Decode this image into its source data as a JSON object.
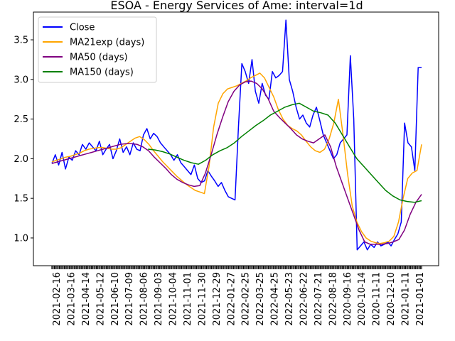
{
  "chart_data": {
    "type": "line",
    "title": "ESOA - Energy Services of Ame: interval=1d",
    "xlabel": "",
    "ylabel": "",
    "ylim": [
      0.65,
      3.85
    ],
    "yticks": [
      1.0,
      1.5,
      2.0,
      2.5,
      3.0,
      3.5
    ],
    "ytick_labels": [
      "1.0",
      "1.5",
      "2.0",
      "2.5",
      "3.0",
      "3.5"
    ],
    "x_tick_labels": [
      "2021-02-16",
      "2021-03-16",
      "2021-04-14",
      "2021-05-12",
      "2021-06-10",
      "2021-07-09",
      "2021-08-06",
      "2021-09-03",
      "2021-10-04",
      "2021-11-01",
      "2021-11-30",
      "2021-12-29",
      "2022-01-27",
      "2022-02-25",
      "2022-03-25",
      "2022-04-25",
      "2022-05-23",
      "2022-06-22",
      "2022-07-21",
      "2022-08-18",
      "2020-09-16",
      "2020-10-14",
      "2020-11-11",
      "2020-12-10",
      "2021-01-11",
      "2021-01-01"
    ],
    "legend_position": "upper-left",
    "series": [
      {
        "name": "Close",
        "color": "#0000ff",
        "values": [
          1.94,
          2.05,
          1.92,
          2.08,
          1.87,
          2.02,
          1.98,
          2.1,
          2.05,
          2.18,
          2.12,
          2.2,
          2.15,
          2.1,
          2.22,
          2.05,
          2.12,
          2.18,
          2.0,
          2.1,
          2.25,
          2.08,
          2.15,
          2.05,
          2.2,
          2.12,
          2.1,
          2.3,
          2.38,
          2.25,
          2.32,
          2.28,
          2.2,
          2.15,
          2.1,
          2.05,
          1.98,
          2.05,
          1.95,
          1.9,
          1.85,
          1.8,
          1.92,
          1.75,
          1.7,
          1.72,
          1.85,
          1.78,
          1.72,
          1.65,
          1.7,
          1.6,
          1.52,
          1.5,
          1.48,
          2.4,
          3.2,
          3.1,
          2.95,
          3.25,
          2.85,
          2.7,
          2.95,
          2.8,
          2.75,
          3.1,
          3.02,
          3.05,
          3.1,
          3.75,
          3.0,
          2.85,
          2.65,
          2.5,
          2.55,
          2.45,
          2.4,
          2.55,
          2.65,
          2.48,
          2.3,
          2.2,
          2.1,
          2.0,
          2.05,
          2.2,
          2.25,
          2.3,
          3.3,
          2.5,
          0.85,
          0.9,
          0.95,
          0.85,
          0.92,
          0.88,
          0.95,
          0.9,
          0.92,
          0.95,
          0.9,
          0.98,
          1.05,
          1.2,
          2.45,
          2.2,
          2.15,
          1.85,
          3.15,
          3.15
        ]
      },
      {
        "name": "MA21exp (days)",
        "color": "#ffa500",
        "values": [
          1.96,
          1.98,
          2.0,
          2.02,
          2.03,
          2.05,
          2.07,
          2.1,
          2.12,
          2.13,
          2.14,
          2.14,
          2.13,
          2.12,
          2.12,
          2.14,
          2.18,
          2.22,
          2.26,
          2.28,
          2.24,
          2.18,
          2.1,
          2.03,
          1.96,
          1.9,
          1.84,
          1.78,
          1.73,
          1.68,
          1.64,
          1.6,
          1.58,
          1.56,
          1.9,
          2.4,
          2.7,
          2.82,
          2.88,
          2.9,
          2.92,
          2.95,
          2.98,
          3.02,
          3.05,
          3.08,
          3.02,
          2.9,
          2.78,
          2.62,
          2.5,
          2.42,
          2.38,
          2.35,
          2.3,
          2.22,
          2.15,
          2.1,
          2.08,
          2.12,
          2.25,
          2.45,
          2.75,
          2.3,
          1.8,
          1.4,
          1.2,
          1.08,
          1.0,
          0.96,
          0.94,
          0.93,
          0.94,
          0.96,
          1.02,
          1.2,
          1.5,
          1.75,
          1.82,
          1.85,
          2.18
        ]
      },
      {
        "name": "MA50 (days)",
        "color": "#800080",
        "values": [
          1.94,
          1.96,
          1.98,
          2.0,
          2.02,
          2.04,
          2.06,
          2.08,
          2.1,
          2.12,
          2.14,
          2.16,
          2.18,
          2.19,
          2.19,
          2.18,
          2.15,
          2.1,
          2.02,
          1.95,
          1.88,
          1.8,
          1.74,
          1.7,
          1.67,
          1.65,
          1.66,
          1.82,
          2.05,
          2.3,
          2.52,
          2.72,
          2.85,
          2.93,
          2.97,
          2.98,
          2.95,
          2.88,
          2.76,
          2.6,
          2.52,
          2.45,
          2.38,
          2.3,
          2.25,
          2.22,
          2.2,
          2.25,
          2.3,
          2.15,
          1.9,
          1.7,
          1.5,
          1.3,
          1.1,
          0.95,
          0.92,
          0.92,
          0.92,
          0.93,
          0.95,
          0.98,
          1.1,
          1.3,
          1.45,
          1.55
        ]
      },
      {
        "name": "MA150 (days)",
        "color": "#008000",
        "values": [
          2.12,
          2.11,
          2.09,
          2.06,
          2.02,
          1.98,
          1.95,
          1.93,
          1.98,
          2.05,
          2.1,
          2.14,
          2.2,
          2.28,
          2.35,
          2.42,
          2.48,
          2.55,
          2.6,
          2.65,
          2.68,
          2.7,
          2.65,
          2.6,
          2.58,
          2.55,
          2.45,
          2.3,
          2.15,
          2.0,
          1.9,
          1.8,
          1.7,
          1.6,
          1.53,
          1.48,
          1.46,
          1.45,
          1.47
        ]
      }
    ]
  }
}
